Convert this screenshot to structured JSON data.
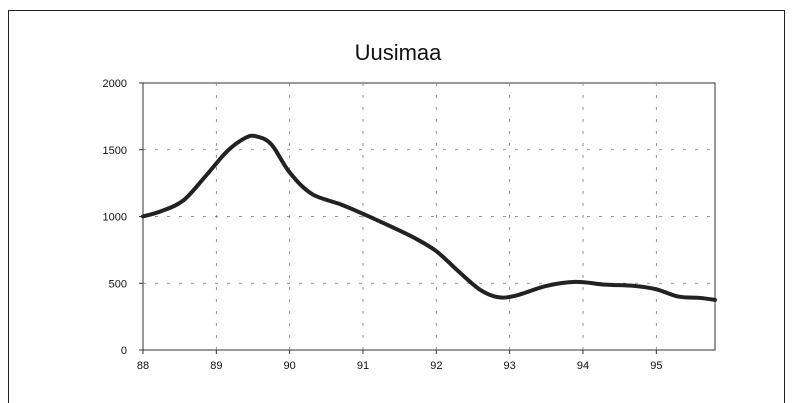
{
  "chart_data": {
    "type": "line",
    "title": "Uusimaa",
    "xlabel": "",
    "ylabel": "",
    "xlim": [
      88,
      95.8
    ],
    "ylim": [
      0,
      2000
    ],
    "x_ticks": [
      "88",
      "89",
      "90",
      "91",
      "92",
      "93",
      "94",
      "95"
    ],
    "y_ticks": [
      "0",
      "500",
      "1000",
      "1500",
      "2000"
    ],
    "grid": true,
    "legend": "none",
    "series": [
      {
        "color": "#222222",
        "x": [
          88.0,
          88.25,
          88.55,
          88.85,
          89.15,
          89.4,
          89.55,
          89.75,
          90.0,
          90.3,
          90.7,
          91.0,
          91.4,
          91.7,
          92.0,
          92.3,
          92.6,
          92.85,
          93.1,
          93.5,
          93.9,
          94.3,
          94.7,
          95.0,
          95.3,
          95.6,
          95.8
        ],
        "y": [
          1000,
          1040,
          1120,
          1300,
          1490,
          1590,
          1600,
          1540,
          1330,
          1170,
          1090,
          1020,
          920,
          840,
          740,
          590,
          450,
          395,
          410,
          480,
          510,
          490,
          480,
          455,
          400,
          390,
          375
        ]
      }
    ]
  }
}
